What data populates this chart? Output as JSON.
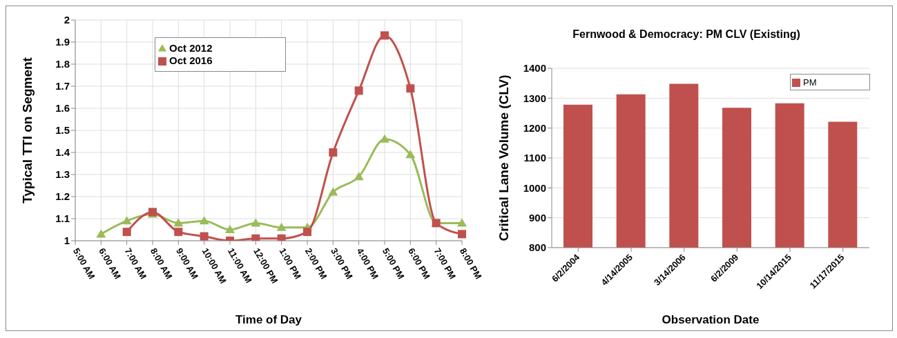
{
  "chart_data": [
    {
      "type": "line",
      "xlabel": "Time of Day",
      "ylabel": "Typical TTI on Segment",
      "categories": [
        "5:00 AM",
        "6:00 AM",
        "7:00 AM",
        "8:00 AM",
        "9:00 AM",
        "10:00 AM",
        "11:00 AM",
        "12:00 PM",
        "1:00 PM",
        "2:00 PM",
        "3:00 PM",
        "4:00 PM",
        "5:00 PM",
        "6:00 PM",
        "7:00 PM",
        "8:00 PM"
      ],
      "series": [
        {
          "name": "Oct 2012",
          "color": "#9bbb59",
          "marker": "triangle",
          "values": [
            null,
            1.03,
            1.09,
            1.12,
            1.08,
            1.09,
            1.05,
            1.08,
            1.06,
            1.06,
            1.22,
            1.29,
            1.46,
            1.39,
            1.08,
            1.08
          ]
        },
        {
          "name": "Oct 2016",
          "color": "#c0504d",
          "marker": "square",
          "values": [
            null,
            null,
            1.04,
            1.13,
            1.04,
            1.02,
            1.0,
            1.01,
            1.01,
            1.04,
            1.4,
            1.68,
            1.93,
            1.69,
            1.08,
            1.03
          ]
        }
      ],
      "ylim": [
        1,
        2
      ],
      "yticks": [
        1,
        1.1,
        1.2,
        1.3,
        1.4,
        1.5,
        1.6,
        1.7,
        1.8,
        1.9,
        2
      ],
      "grid": true,
      "legend": "top left",
      "line_style": "solid"
    },
    {
      "type": "bar",
      "title": "Fernwood & Democracy: PM CLV (Existing)",
      "xlabel": "Observation Date",
      "ylabel": "Critical Lane Volume (CLV)",
      "categories": [
        "6/2/2004",
        "4/14/2005",
        "3/14/2006",
        "6/2/2009",
        "10/14/2015",
        "11/17/2015"
      ],
      "series": [
        {
          "name": "PM",
          "color": "#c0504d",
          "values": [
            1278,
            1313,
            1348,
            1268,
            1283,
            1221
          ]
        }
      ],
      "ylim": [
        800,
        1400
      ],
      "yticks": [
        800,
        900,
        1000,
        1100,
        1200,
        1300,
        1400
      ],
      "grid": "y",
      "legend": "top right"
    }
  ]
}
